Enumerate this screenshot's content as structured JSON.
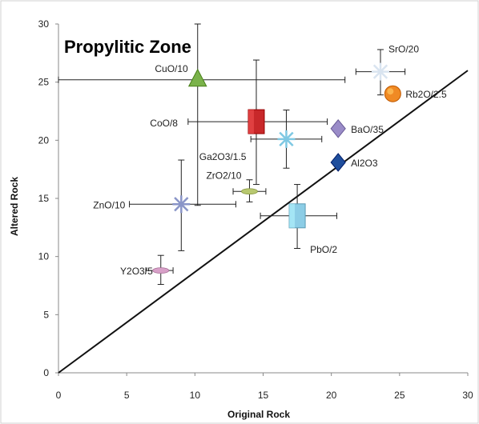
{
  "chart_data": {
    "type": "scatter",
    "title": "Propylitic Zone",
    "xlabel": "Original Rock",
    "ylabel": "Altered Rock",
    "xlim": [
      0,
      30
    ],
    "ylim": [
      0,
      30
    ],
    "xticks": [
      "0",
      "5",
      "10",
      "15",
      "20",
      "25",
      "30"
    ],
    "yticks": [
      "0",
      "5",
      "10",
      "15",
      "20",
      "25",
      "30"
    ],
    "grid": false,
    "isocon_line": {
      "from": [
        0,
        0
      ],
      "to": [
        30,
        26
      ]
    },
    "points": [
      {
        "label": "CuO/10",
        "x": 10.2,
        "y": 25.2,
        "xerr": [
          0,
          21.0
        ],
        "yerr": [
          14.4,
          30
        ],
        "marker": "triangle",
        "color": "#7ab24a"
      },
      {
        "label": "SrO/20",
        "x": 23.6,
        "y": 25.9,
        "xerr": [
          21.8,
          25.4
        ],
        "yerr": [
          23.9,
          27.8
        ],
        "marker": "star",
        "color": "#d9e4f0"
      },
      {
        "label": "Rb2O/2.5",
        "x": 24.5,
        "y": 24.0,
        "xerr": [
          24.5,
          24.5
        ],
        "yerr": [
          24.0,
          24.0
        ],
        "marker": "circle",
        "color": "#f08a24"
      },
      {
        "label": "CoO/8",
        "x": 14.5,
        "y": 21.6,
        "xerr": [
          9.5,
          19.7
        ],
        "yerr": [
          16.2,
          26.9
        ],
        "marker": "square",
        "color": "#c8282a"
      },
      {
        "label": "Ga2O3/1.5",
        "x": 16.7,
        "y": 20.1,
        "xerr": [
          14.1,
          19.3
        ],
        "yerr": [
          17.6,
          22.6
        ],
        "marker": "star",
        "color": "#7ec8e3"
      },
      {
        "label": "BaO/35",
        "x": 20.5,
        "y": 21.0,
        "xerr": [
          20.5,
          20.5
        ],
        "yerr": [
          21.0,
          21.0
        ],
        "marker": "diamond",
        "color": "#9a8cc8"
      },
      {
        "label": "Al2O3",
        "x": 20.5,
        "y": 18.1,
        "xerr": [
          20.5,
          20.5
        ],
        "yerr": [
          18.1,
          18.1
        ],
        "marker": "diamond",
        "color": "#1f4e9c"
      },
      {
        "label": "ZrO2/10",
        "x": 14.0,
        "y": 15.6,
        "xerr": [
          12.8,
          15.2
        ],
        "yerr": [
          14.7,
          16.6
        ],
        "marker": "dash",
        "color": "#b8c870"
      },
      {
        "label": "ZnO/10",
        "x": 9.0,
        "y": 14.5,
        "xerr": [
          5.2,
          13.0
        ],
        "yerr": [
          10.5,
          18.3
        ],
        "marker": "star",
        "color": "#8a95c8"
      },
      {
        "label": "PbO/2",
        "x": 17.5,
        "y": 13.5,
        "xerr": [
          14.8,
          20.4
        ],
        "yerr": [
          10.7,
          16.2
        ],
        "marker": "square",
        "color": "#8ccde6"
      },
      {
        "label": "Y2O3/5",
        "x": 7.5,
        "y": 8.8,
        "xerr": [
          6.4,
          8.4
        ],
        "yerr": [
          7.6,
          10.1
        ],
        "marker": "dash",
        "color": "#d8a0c8"
      }
    ]
  }
}
